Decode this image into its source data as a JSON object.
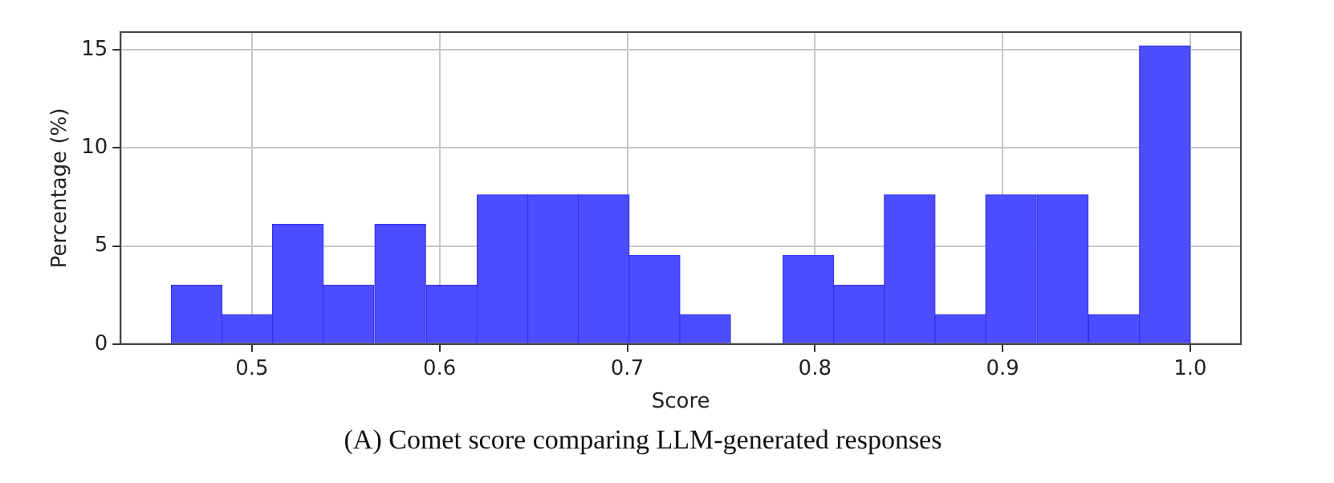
{
  "chart_data": {
    "type": "histogram",
    "title": "(A) Comet score comparing LLM-generated responses",
    "xlabel": "Score",
    "ylabel": "Percentage (%)",
    "bins": [
      0.457,
      0.484,
      0.511,
      0.538,
      0.565,
      0.593,
      0.62,
      0.647,
      0.674,
      0.701,
      0.728,
      0.755,
      0.783,
      0.81,
      0.837,
      0.864,
      0.891,
      0.918,
      0.946,
      0.973,
      1.0
    ],
    "values": [
      3.0,
      1.5,
      6.1,
      3.0,
      6.1,
      3.0,
      7.6,
      7.6,
      7.6,
      4.5,
      1.5,
      0,
      4.5,
      3.0,
      7.6,
      1.5,
      7.6,
      7.6,
      1.5,
      15.2
    ],
    "color": "#4d4dff",
    "xlim": [
      0.43,
      1.027
    ],
    "xticks": [
      {
        "value": 0.5,
        "label": "0.5"
      },
      {
        "value": 0.6,
        "label": "0.6"
      },
      {
        "value": 0.7,
        "label": "0.7"
      },
      {
        "value": 0.8,
        "label": "0.8"
      },
      {
        "value": 0.9,
        "label": "0.9"
      },
      {
        "value": 1.0,
        "label": "1.0"
      }
    ],
    "ylim": [
      0,
      15.9
    ],
    "yticks": [
      0,
      5,
      10,
      15
    ],
    "grid": true,
    "legend": false
  }
}
